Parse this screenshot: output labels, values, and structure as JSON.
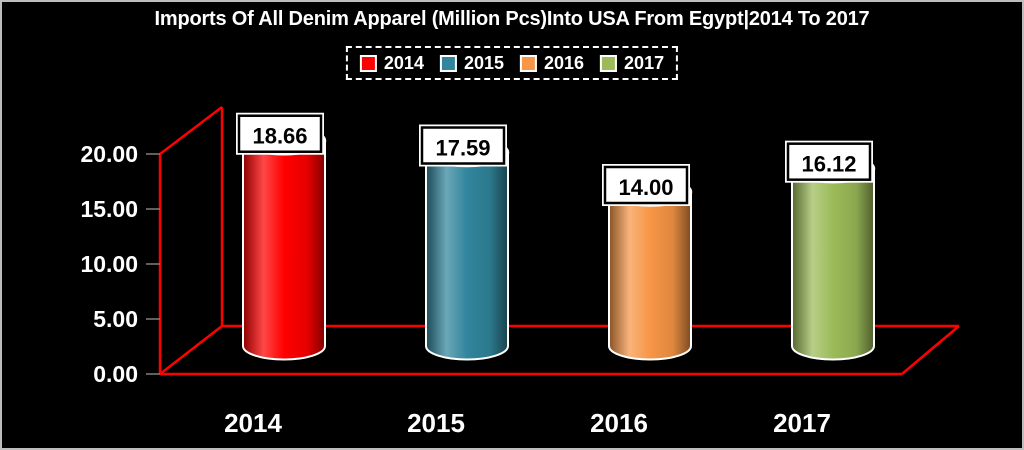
{
  "window": {
    "background_color": "#000000",
    "border_color": "#bdbdbd"
  },
  "chart_data": {
    "type": "bar",
    "subtype": "3d-cylinder",
    "title": "Imports Of All Denim Apparel (Million Pcs)Into USA From Egypt|2014 To 2017",
    "categories": [
      "2014",
      "2015",
      "2016",
      "2017"
    ],
    "values": [
      18.66,
      17.59,
      14.0,
      16.12
    ],
    "series": [
      {
        "name": "2014",
        "value": 18.66,
        "label": "18.66",
        "color": "#ff0000"
      },
      {
        "name": "2015",
        "value": 17.59,
        "label": "17.59",
        "color": "#31859c"
      },
      {
        "name": "2016",
        "value": 14.0,
        "label": "14.00",
        "color": "#f79646"
      },
      {
        "name": "2017",
        "value": 16.12,
        "label": "16.12",
        "color": "#9bbb59"
      }
    ],
    "xlabel": "",
    "ylabel": "",
    "ylim": [
      0,
      20
    ],
    "ytick_step": 5,
    "ytick_labels": [
      "0.00",
      "5.00",
      "10.00",
      "15.00",
      "20.00"
    ],
    "grid": false,
    "legend": {
      "position": "top",
      "border_style": "dashed",
      "entries": [
        {
          "label": "2014",
          "color": "#ff0000"
        },
        {
          "label": "2015",
          "color": "#31859c"
        },
        {
          "label": "2016",
          "color": "#f79646"
        },
        {
          "label": "2017",
          "color": "#9bbb59"
        }
      ]
    },
    "colors": {
      "axis_frame": "#ff0000",
      "tick": "#808080",
      "text": "#ffffff",
      "value_label_fill": "#ffffff",
      "value_label_text": "#000000",
      "value_label_border": "#000000",
      "cylinder_outline": "#ffffff"
    }
  }
}
